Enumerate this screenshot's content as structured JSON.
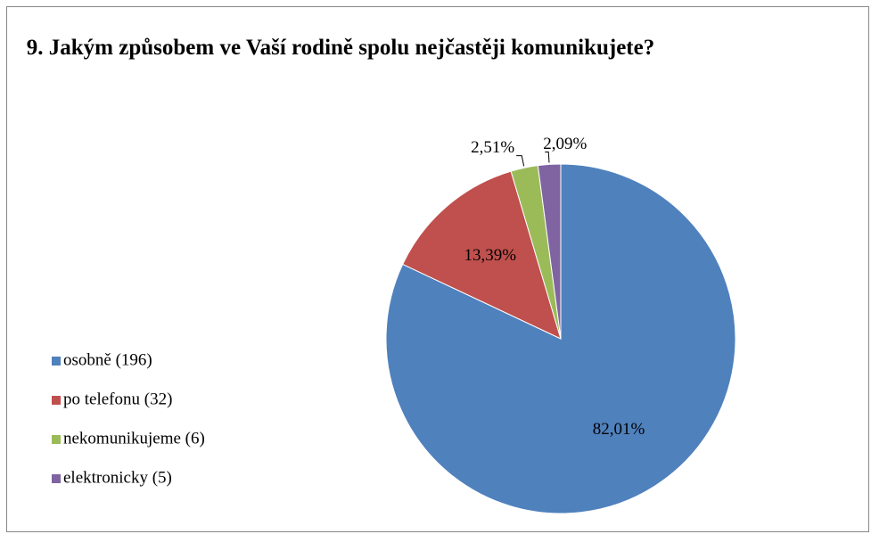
{
  "chart_data": {
    "type": "pie",
    "title": "9. Jakým způsobem ve Vaší rodině spolu nejčastěji komunikujete?",
    "categories": [
      "osobně (196)",
      "po telefonu (32)",
      "nekomunikujeme (6)",
      "elektronicky (5)"
    ],
    "values": [
      82.01,
      13.39,
      2.51,
      2.09
    ],
    "value_labels": [
      "82,01%",
      "13,39%",
      "2,51%",
      "2,09%"
    ],
    "colors": [
      "#4f81bd",
      "#c0504d",
      "#9bbb59",
      "#8064a2"
    ],
    "legend": "left"
  }
}
